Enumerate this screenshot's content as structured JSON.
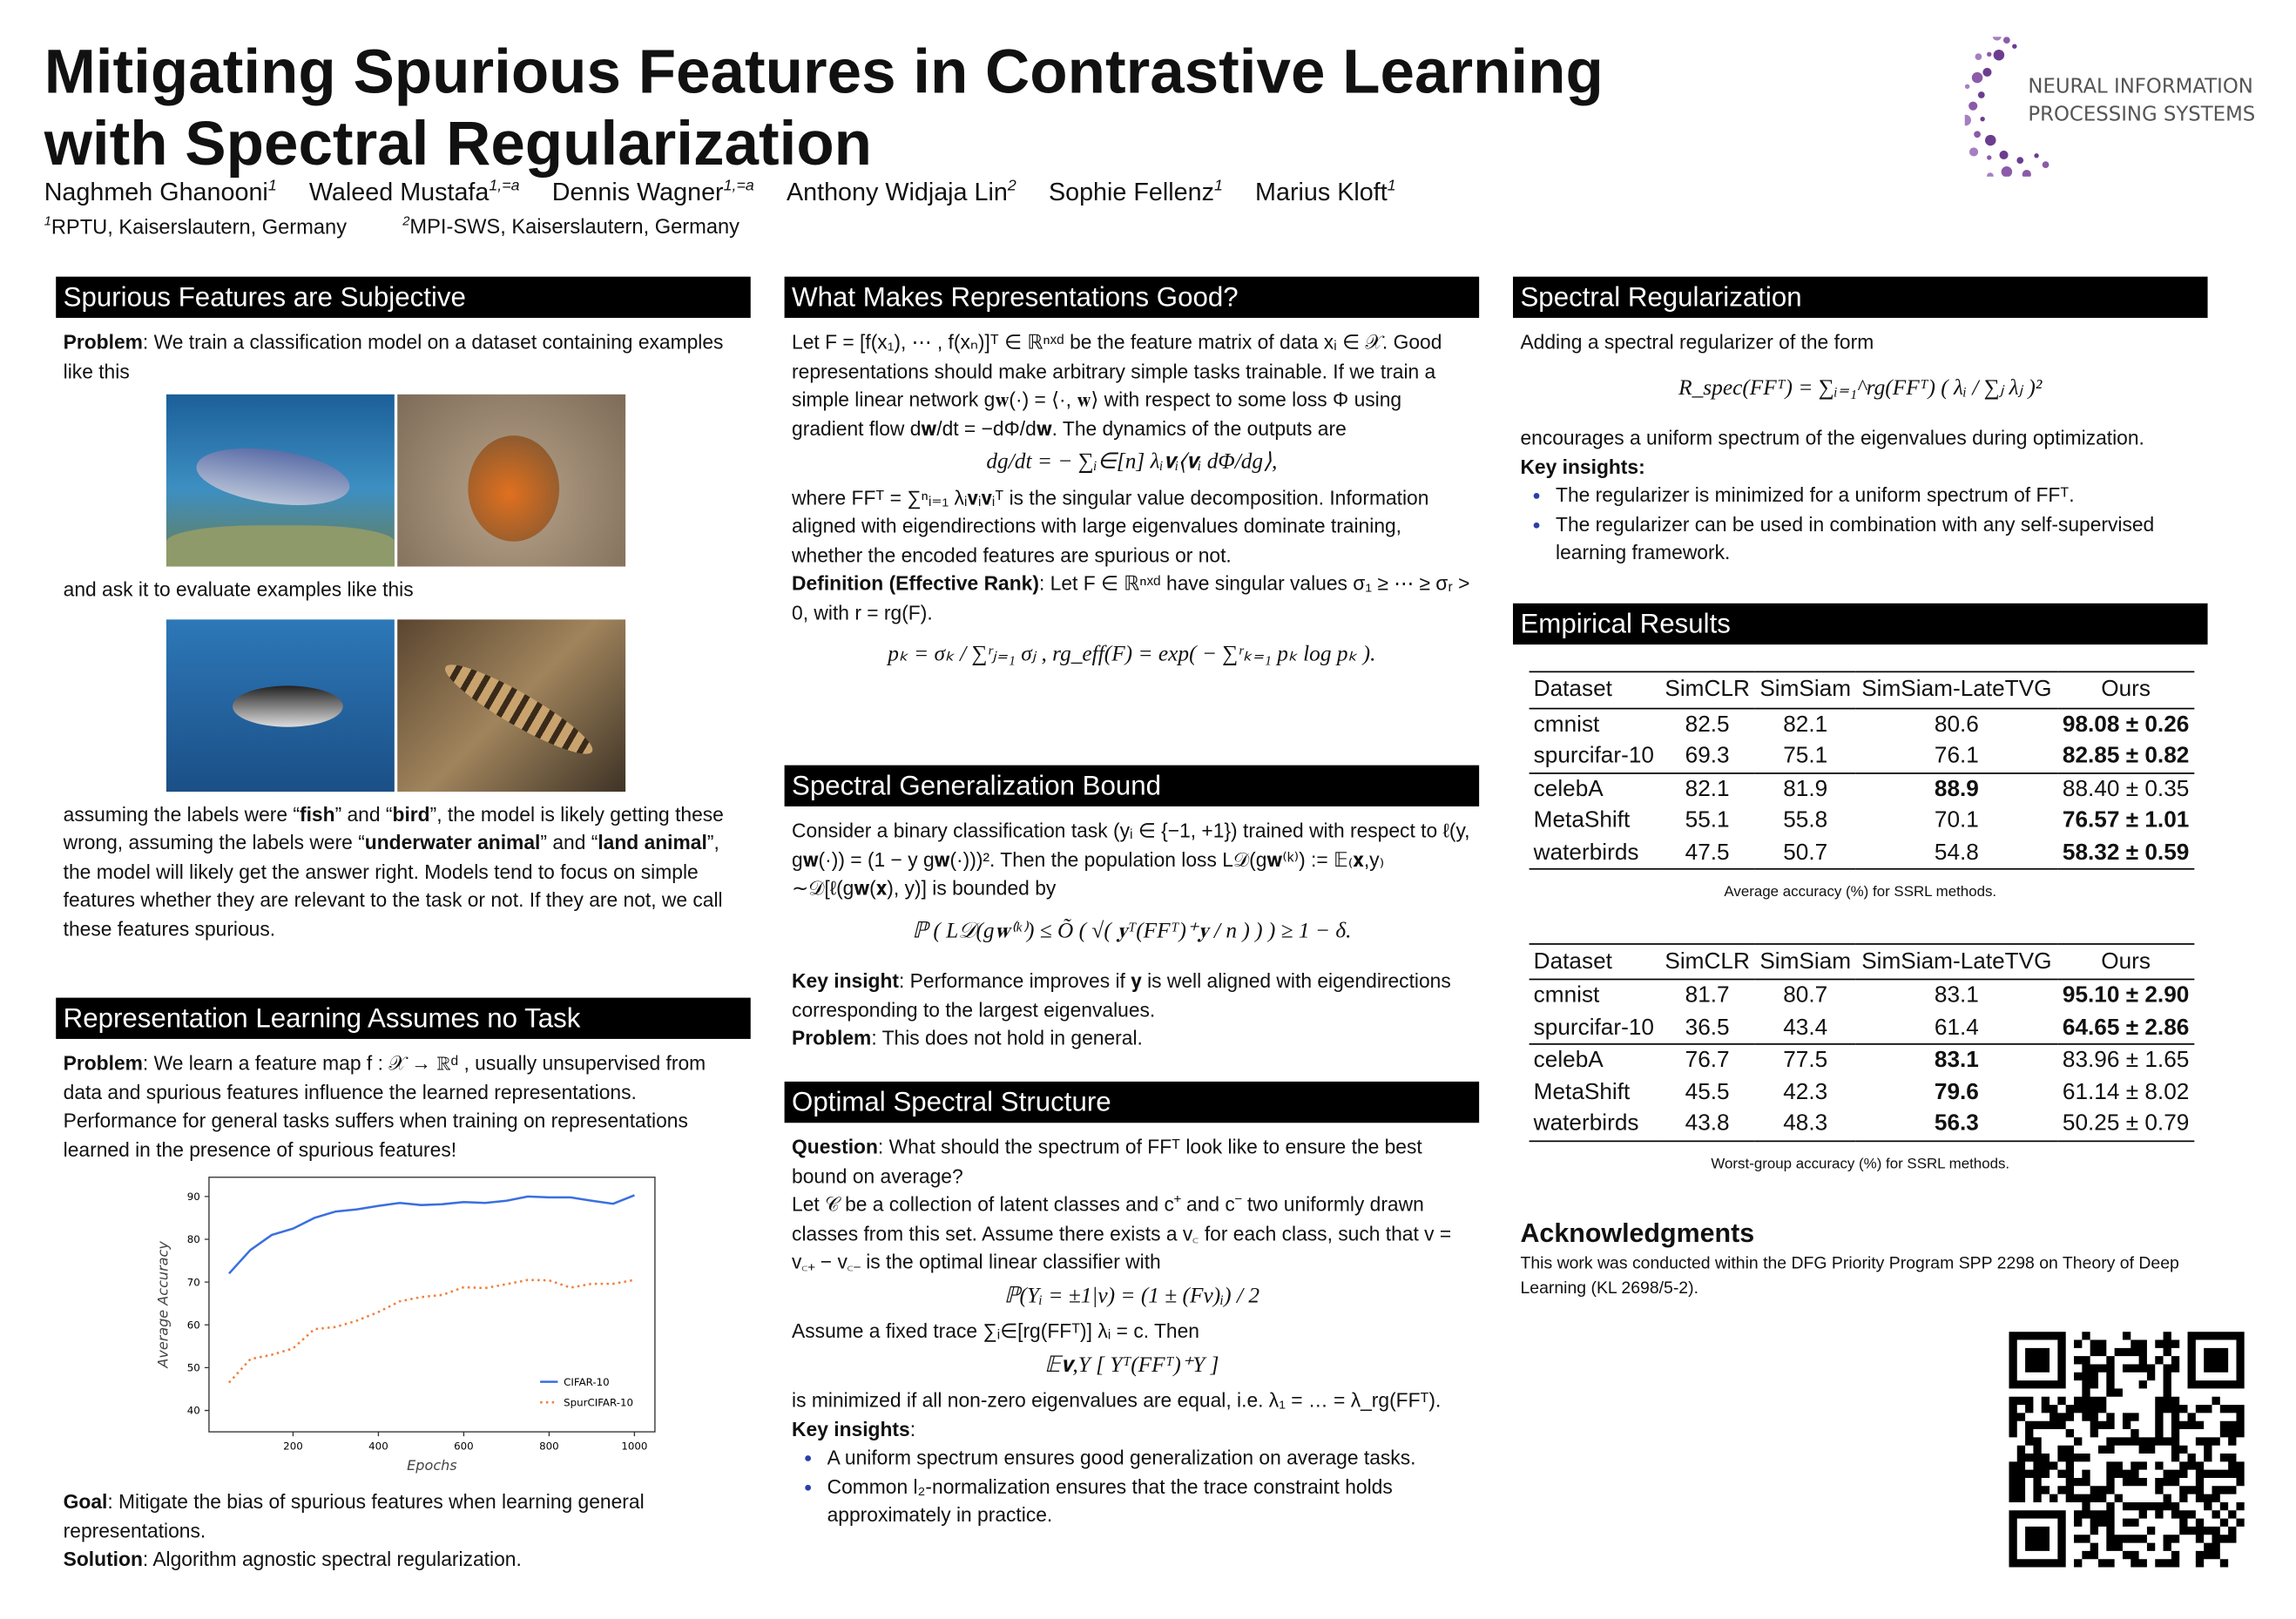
{
  "header": {
    "title_lines": [
      "Mitigating Spurious Features in Contrastive Learning",
      "with Spectral Regularization"
    ],
    "authors": [
      {
        "name": "Naghmeh Ghanooni",
        "sup": "1"
      },
      {
        "name": "Waleed Mustafa",
        "sup": "1,=a"
      },
      {
        "name": "Dennis Wagner",
        "sup": "1,=a"
      },
      {
        "name": "Anthony Widjaja Lin",
        "sup": "2"
      },
      {
        "name": "Sophie Fellenz",
        "sup": "1"
      },
      {
        "name": "Marius Kloft",
        "sup": "1"
      }
    ],
    "affiliations": [
      {
        "sup": "1",
        "text": "RPTU, Kaiserslautern, Germany"
      },
      {
        "sup": "2",
        "text": "MPI-SWS, Kaiserslautern, Germany"
      }
    ],
    "logo": [
      "NEURAL INFORMATION",
      "PROCESSING SYSTEMS"
    ]
  },
  "sections": {
    "spurious": {
      "title": "Spurious Features are Subjective",
      "runs": [
        "Problem",
        ": We train a classification model on a dataset containing examples like this",
        "and ask it to evaluate examples like this",
        "assuming the labels were “",
        "fish",
        "” and “",
        "bird",
        "”, the model is likely getting these wrong, assuming the labels were “",
        "underwater animal",
        "” and “",
        "land animal",
        "”, the model will likely get the answer right. Models tend to focus on simple features whether they are relevant to the task or not. If they are not, we call these features spurious."
      ]
    },
    "representation": {
      "title": "Representation Learning Assumes no Task",
      "runs": [
        "Problem",
        ": We learn a feature map f : 𝒳 → ℝᵈ , usually unsupervised from data and spurious features influence the learned representations. Performance for general tasks suffers when training on representations learned in the presence of spurious features!",
        "Goal",
        ": Mitigate the bias of spurious features when learning general representations.",
        "Solution",
        ": Algorithm agnostic spectral regularization."
      ]
    },
    "good": {
      "title": "What Makes Representations Good?",
      "runs": [
        "Let F = [f(x₁), ⋯ , f(xₙ)]ᵀ ∈ ℝⁿˣᵈ be the feature matrix of data xᵢ ∈ 𝒳. Good representations should make arbitrary simple tasks trainable. If we train a simple linear network g𝐰(·) = ⟨·, 𝐰⟩ with respect to some loss Φ using gradient flow d𝐰/dt = −dΦ/d𝐰. The dynamics of the outputs are",
        "dg/dt = − ∑ᵢ∈[n] λᵢ𝐯ᵢ⟨𝐯ᵢ dΦ/dg⟩,",
        "where FFᵀ = ∑ⁿᵢ₌₁ λᵢ𝐯ᵢ𝐯ᵢᵀ is the singular value decomposition. Information aligned with eigendirections with large eigenvalues dominate training, whether the encoded features are spurious or not.",
        "Definition (Effective Rank)",
        ": Let F ∈ ℝⁿˣᵈ have singular values σ₁ ≥ ⋯ ≥ σᵣ > 0, with r = rg(F).",
        "pₖ = σₖ / ∑ʳⱼ₌₁ σⱼ ,      rg_eff(F) = exp( − ∑ʳₖ₌₁ pₖ log pₖ )."
      ]
    },
    "bound": {
      "title": "Spectral Generalization Bound",
      "runs": [
        "Consider a binary classification task (yᵢ ∈ {−1, +1}) trained with respect to ℓ(y, g𝐰(·)) = (1 − y g𝐰(·)))². Then the population loss L𝒟(g𝐰⁽ᵏ⁾) := 𝔼₍𝐱,y₎∼𝒟[ℓ(g𝐰(𝐱), y)] is bounded by",
        "ℙ ( L𝒟(g𝐰⁽ᵏ⁾) ≤ Õ ( √( 𝐲ᵀ(FFᵀ)⁺𝐲 / n ) ) ) ≥ 1 − δ.",
        "Key insight",
        ": Performance improves if 𝐲 is well aligned with eigendirections corresponding to the largest eigenvalues.",
        "Problem",
        ": This does not hold in general."
      ]
    },
    "optimal": {
      "title": "Optimal Spectral Structure",
      "runs": [
        "Question",
        ": What should the spectrum of FFᵀ look like to ensure the best bound on average?",
        "Let 𝒞 be a collection of latent classes and c⁺ and c⁻ two uniformly drawn classes from this set. Assume there exists a v꜀ for each class, such that v = v꜀₊ − v꜀₋ is the optimal linear classifier with",
        "ℙ(Yᵢ = ±1|v) = (1 ± (Fv)ᵢ) / 2",
        "Assume a fixed trace ∑ᵢ∈[rg(FFᵀ)] λᵢ = c.  Then",
        "𝔼𝐯,Y [ Yᵀ(FFᵀ)⁺Y ]",
        "is minimized if all non-zero eigenvalues are equal, i.e. λ₁ = … = λ_rg(FFᵀ).",
        "Key insights",
        ":",
        "A uniform spectrum ensures good generalization on average tasks.",
        "Common l₂-normalization ensures that the trace constraint holds approximately in practice."
      ]
    },
    "spectral": {
      "title": "Spectral Regularization",
      "runs": [
        "Adding a spectral regularizer of the form",
        "R_spec(FFᵀ) = ∑ᵢ₌₁^rg(FFᵀ) ( λᵢ / ∑ⱼ λⱼ )²",
        "encourages a uniform spectrum of the eigenvalues during optimization.",
        "Key insights:",
        "The regularizer is minimized for a uniform spectrum of FFᵀ.",
        "The regularizer can be used in combination with any self-supervised learning framework."
      ]
    },
    "results": {
      "title": "Empirical Results",
      "tables": [
        {
          "header": [
            "Dataset",
            "SimCLR",
            "SimSiam",
            "SimSiam-LateTVG",
            "Ours"
          ],
          "rows": [
            [
              "cmnist",
              "82.5",
              "82.1",
              "80.6",
              "98.08 ± 0.26"
            ],
            [
              "spurcifar-10",
              "69.3",
              "75.1",
              "76.1",
              "82.85 ± 0.82"
            ],
            [
              "celebA",
              "82.1",
              "81.9",
              "88.9",
              "88.40 ± 0.35"
            ],
            [
              "MetaShift",
              "55.1",
              "55.8",
              "70.1",
              "76.57 ± 1.01"
            ],
            [
              "waterbirds",
              "47.5",
              "50.7",
              "54.8",
              "58.32 ± 0.59"
            ]
          ],
          "caption": "Average accuracy (%) for SSRL methods."
        },
        {
          "header": [
            "Dataset",
            "SimCLR",
            "SimSiam",
            "SimSiam-LateTVG",
            "Ours"
          ],
          "rows": [
            [
              "cmnist",
              "81.7",
              "80.7",
              "83.1",
              "95.10 ± 2.90"
            ],
            [
              "spurcifar-10",
              "36.5",
              "43.4",
              "61.4",
              "64.65 ± 2.86"
            ],
            [
              "celebA",
              "76.7",
              "77.5",
              "83.1",
              "83.96 ± 1.65"
            ],
            [
              "MetaShift",
              "45.5",
              "42.3",
              "79.6",
              "61.14 ± 8.02"
            ],
            [
              "waterbirds",
              "43.8",
              "48.3",
              "56.3",
              "50.25 ± 0.79"
            ]
          ],
          "caption": "Worst-group accuracy (%) for SSRL methods."
        }
      ]
    },
    "acknowledgments": {
      "title": "Acknowledgments",
      "text": "This work was conducted within the DFG Priority Program SPP 2298 on Theory of Deep Learning (KL 2698/5-2)."
    }
  },
  "chart_data": {
    "type": "line",
    "xlabel": "Epochs",
    "ylabel": "Average Accuracy",
    "x": [
      50,
      100,
      150,
      200,
      250,
      300,
      350,
      400,
      450,
      500,
      550,
      600,
      650,
      700,
      750,
      800,
      850,
      900,
      950,
      1000
    ],
    "series": [
      {
        "name": "CIFAR-10",
        "color": "#3a6fe0",
        "line_style": "solid",
        "values": [
          72,
          77.5,
          81,
          82.5,
          85,
          86.5,
          87,
          87.8,
          88.5,
          88,
          88.2,
          88.7,
          88.5,
          89,
          90,
          89.8,
          89.8,
          89,
          88.3,
          90.3
        ]
      },
      {
        "name": "SpurCIFAR-10",
        "color": "#f07f3c",
        "line_style": "dotted",
        "values": [
          46.5,
          52,
          53,
          54.5,
          59,
          59.5,
          61,
          63,
          65.5,
          66.5,
          67,
          68.8,
          68.6,
          69.5,
          70.5,
          70.4,
          68.7,
          69.6,
          69.6,
          70.5
        ]
      }
    ],
    "xlim": [
      3,
      1048
    ],
    "ylim": [
      35,
      94.5
    ],
    "xticks": [
      200,
      400,
      600,
      800,
      1000
    ],
    "yticks": [
      40,
      50,
      60,
      70,
      80,
      90
    ],
    "legend": "lower right"
  }
}
